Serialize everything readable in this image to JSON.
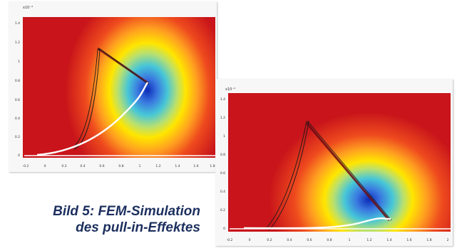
{
  "caption": {
    "line1": "Bild 5: FEM-Simulation",
    "line2": "des pull-in-Effektes",
    "color": "#1c2f5e"
  },
  "plots": [
    {
      "scale_label": "x10⁻⁴",
      "y_ticks": [
        "1.4",
        "1.2",
        "1",
        "0.8",
        "0.6",
        "0.4",
        "0.2",
        "0"
      ],
      "x_ticks": [
        "-0.2",
        "0",
        "0.2",
        "0.4",
        "0.6",
        "0.8",
        "1",
        "1.2",
        "1.4",
        "1.6",
        "1.8"
      ]
    },
    {
      "scale_label": "x10⁻⁴",
      "y_ticks": [
        "1.4",
        "1.2",
        "1",
        "0.8",
        "0.6",
        "0.4",
        "0.2",
        "0"
      ],
      "x_ticks": [
        "-0.2",
        "0",
        "0.2",
        "0.4",
        "0.6",
        "0.8",
        "1",
        "1.2",
        "1.4",
        "1.6",
        "1.8",
        "2"
      ]
    }
  ],
  "colors": {
    "field_high": "#c8141a",
    "field_mid": "#ffe600",
    "field_low": "#1d4fd0",
    "trace": "#ffffff"
  }
}
